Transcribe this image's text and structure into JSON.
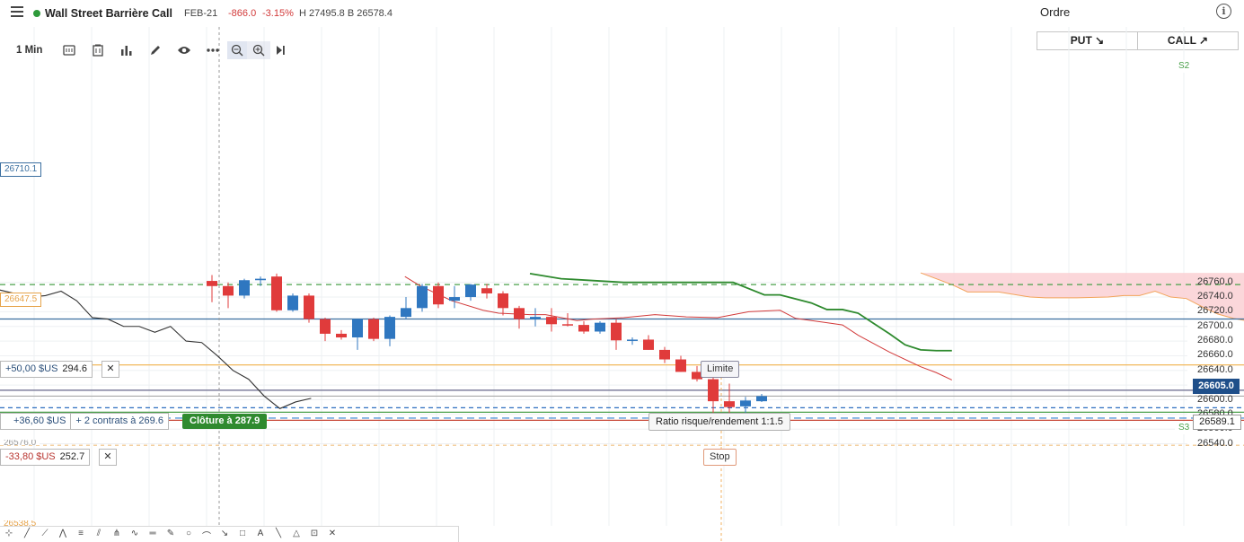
{
  "header": {
    "instrument": "Wall Street Barrière Call",
    "expiry": "FEB-21",
    "change": "-866.0",
    "change_pct": "-3.15%",
    "high_low": "H 27495.8  B 26578.4",
    "ordre": "Ordre",
    "put_label": "PUT ↘",
    "call_label": "CALL ↗"
  },
  "toolbar": {
    "timeframe": "1 Min",
    "icons": [
      "chart-type-icon",
      "template-icon",
      "indicators-icon",
      "pencil-icon",
      "eye-icon",
      "more-icon",
      "zoom-out-icon",
      "zoom-in-icon",
      "jump-to-end-icon"
    ]
  },
  "axis": {
    "ticks": [
      "26760.0",
      "26740.0",
      "26720.0",
      "26700.0",
      "26680.0",
      "26660.0",
      "26640.0",
      "26620.0",
      "26600.0",
      "26580.0",
      "26560.0",
      "26540.0"
    ],
    "current_price": "26605.0",
    "entry_price": "26589.1",
    "s2": "S2",
    "s3": "S3"
  },
  "levels": {
    "blue_line": "26710.1",
    "orange_line": "26647.5",
    "level_bottom_left": "26576.0",
    "level_lower": "26538.5"
  },
  "orders": {
    "limit_pnl": "+50,00 $US",
    "limit_price": "294.6",
    "position_pnl": "+36,60 $US",
    "position_desc": "+ 2 contrats à 269.6",
    "close_label": "Clôture à 287.9",
    "stop_pnl": "-33,80 $US",
    "stop_price": "252.7",
    "limite_tag": "Limite",
    "stop_tag": "Stop",
    "ratio": "Ratio risque/rendement 1:1.5",
    "close_x": "✕"
  },
  "chart_data": {
    "type": "candlestick",
    "candles": [
      {
        "o": 26762,
        "h": 26770,
        "l": 26733,
        "c": 26755
      },
      {
        "o": 26755,
        "h": 26760,
        "l": 26725,
        "c": 26742
      },
      {
        "o": 26742,
        "h": 26765,
        "l": 26738,
        "c": 26763
      },
      {
        "o": 26763,
        "h": 26768,
        "l": 26755,
        "c": 26765
      },
      {
        "o": 26768,
        "h": 26772,
        "l": 26720,
        "c": 26722
      },
      {
        "o": 26722,
        "h": 26745,
        "l": 26720,
        "c": 26742
      },
      {
        "o": 26742,
        "h": 26745,
        "l": 26705,
        "c": 26710
      },
      {
        "o": 26710,
        "h": 26712,
        "l": 26680,
        "c": 26690
      },
      {
        "o": 26690,
        "h": 26695,
        "l": 26682,
        "c": 26685
      },
      {
        "o": 26685,
        "h": 26710,
        "l": 26668,
        "c": 26710
      },
      {
        "o": 26710,
        "h": 26712,
        "l": 26680,
        "c": 26683
      },
      {
        "o": 26683,
        "h": 26715,
        "l": 26673,
        "c": 26713
      },
      {
        "o": 26713,
        "h": 26740,
        "l": 26710,
        "c": 26725
      },
      {
        "o": 26725,
        "h": 26758,
        "l": 26720,
        "c": 26755
      },
      {
        "o": 26755,
        "h": 26760,
        "l": 26725,
        "c": 26730
      },
      {
        "o": 26735,
        "h": 26755,
        "l": 26725,
        "c": 26740
      },
      {
        "o": 26740,
        "h": 26758,
        "l": 26735,
        "c": 26757
      },
      {
        "o": 26752,
        "h": 26758,
        "l": 26738,
        "c": 26745
      },
      {
        "o": 26745,
        "h": 26748,
        "l": 26715,
        "c": 26725
      },
      {
        "o": 26725,
        "h": 26728,
        "l": 26697,
        "c": 26710
      },
      {
        "o": 26710,
        "h": 26725,
        "l": 26700,
        "c": 26713
      },
      {
        "o": 26713,
        "h": 26725,
        "l": 26693,
        "c": 26703
      },
      {
        "o": 26703,
        "h": 26718,
        "l": 26700,
        "c": 26702
      },
      {
        "o": 26702,
        "h": 26707,
        "l": 26690,
        "c": 26693
      },
      {
        "o": 26693,
        "h": 26707,
        "l": 26690,
        "c": 26705
      },
      {
        "o": 26705,
        "h": 26710,
        "l": 26668,
        "c": 26681
      },
      {
        "o": 26681,
        "h": 26685,
        "l": 26675,
        "c": 26682
      },
      {
        "o": 26682,
        "h": 26688,
        "l": 26668,
        "c": 26668
      },
      {
        "o": 26668,
        "h": 26672,
        "l": 26650,
        "c": 26655
      },
      {
        "o": 26655,
        "h": 26660,
        "l": 26638,
        "c": 26638
      },
      {
        "o": 26638,
        "h": 26646,
        "l": 26625,
        "c": 26628
      },
      {
        "o": 26628,
        "h": 26633,
        "l": 26580,
        "c": 26598
      },
      {
        "o": 26598,
        "h": 26622,
        "l": 26580,
        "c": 26590
      },
      {
        "o": 26591,
        "h": 26604,
        "l": 26576,
        "c": 26599
      },
      {
        "o": 26598,
        "h": 26608,
        "l": 26597,
        "c": 26605
      }
    ],
    "ma_black": [
      [
        0,
        26750
      ],
      [
        2,
        26740
      ],
      [
        3,
        26742
      ],
      [
        4,
        26748
      ],
      [
        5,
        26735
      ],
      [
        6,
        26712
      ],
      [
        7,
        26710
      ],
      [
        8,
        26700
      ],
      [
        9,
        26700
      ],
      [
        10,
        26692
      ],
      [
        11,
        26700
      ],
      [
        12,
        26680
      ],
      [
        13,
        26678
      ],
      [
        14,
        26660
      ],
      [
        15,
        26640
      ],
      [
        16,
        26628
      ],
      [
        17,
        26605
      ],
      [
        18,
        26588
      ],
      [
        19,
        26597
      ],
      [
        20,
        26602
      ]
    ],
    "ma_red": [
      [
        12,
        26768
      ],
      [
        13,
        26755
      ],
      [
        15,
        26735
      ],
      [
        17,
        26722
      ],
      [
        18,
        26718
      ],
      [
        20,
        26716
      ],
      [
        21,
        26716
      ],
      [
        23,
        26708
      ],
      [
        24,
        26710
      ],
      [
        26,
        26712
      ],
      [
        28,
        26716
      ],
      [
        30,
        26713
      ],
      [
        32,
        26712
      ],
      [
        34,
        26720
      ],
      [
        36,
        26722
      ],
      [
        37,
        26711
      ],
      [
        39,
        26705
      ],
      [
        40,
        26702
      ],
      [
        41,
        26688
      ],
      [
        43,
        26665
      ],
      [
        45,
        26645
      ],
      [
        46,
        26637
      ],
      [
        47,
        26627
      ]
    ],
    "ma_green": [
      [
        20,
        26772
      ],
      [
        22,
        26765
      ],
      [
        26,
        26760
      ],
      [
        30,
        26760
      ],
      [
        33,
        26760
      ],
      [
        35,
        26743
      ],
      [
        36,
        26743
      ],
      [
        38,
        26732
      ],
      [
        39,
        26723
      ],
      [
        40,
        26723
      ],
      [
        41,
        26718
      ],
      [
        42,
        26704
      ],
      [
        43,
        26690
      ],
      [
        44,
        26675
      ],
      [
        45,
        26668
      ],
      [
        46,
        26667
      ],
      [
        47,
        26667
      ]
    ],
    "cloud_top": [
      [
        45,
        26773
      ],
      [
        47,
        26757
      ],
      [
        48,
        26747
      ],
      [
        50,
        26747
      ],
      [
        52,
        26740
      ],
      [
        53,
        26739
      ],
      [
        55,
        26739
      ],
      [
        57,
        26740
      ],
      [
        58,
        26742
      ],
      [
        59,
        26742
      ],
      [
        60,
        26748
      ],
      [
        61,
        26740
      ],
      [
        62,
        26738
      ],
      [
        63,
        26727
      ],
      [
        64,
        26717
      ],
      [
        65,
        26711
      ],
      [
        66,
        26707
      ],
      [
        67,
        26700
      ],
      [
        68,
        26690
      ],
      [
        69,
        26680
      ],
      [
        70,
        26670
      ]
    ],
    "cloud_right_edge": 70,
    "ylim": [
      26535,
      26785
    ]
  }
}
